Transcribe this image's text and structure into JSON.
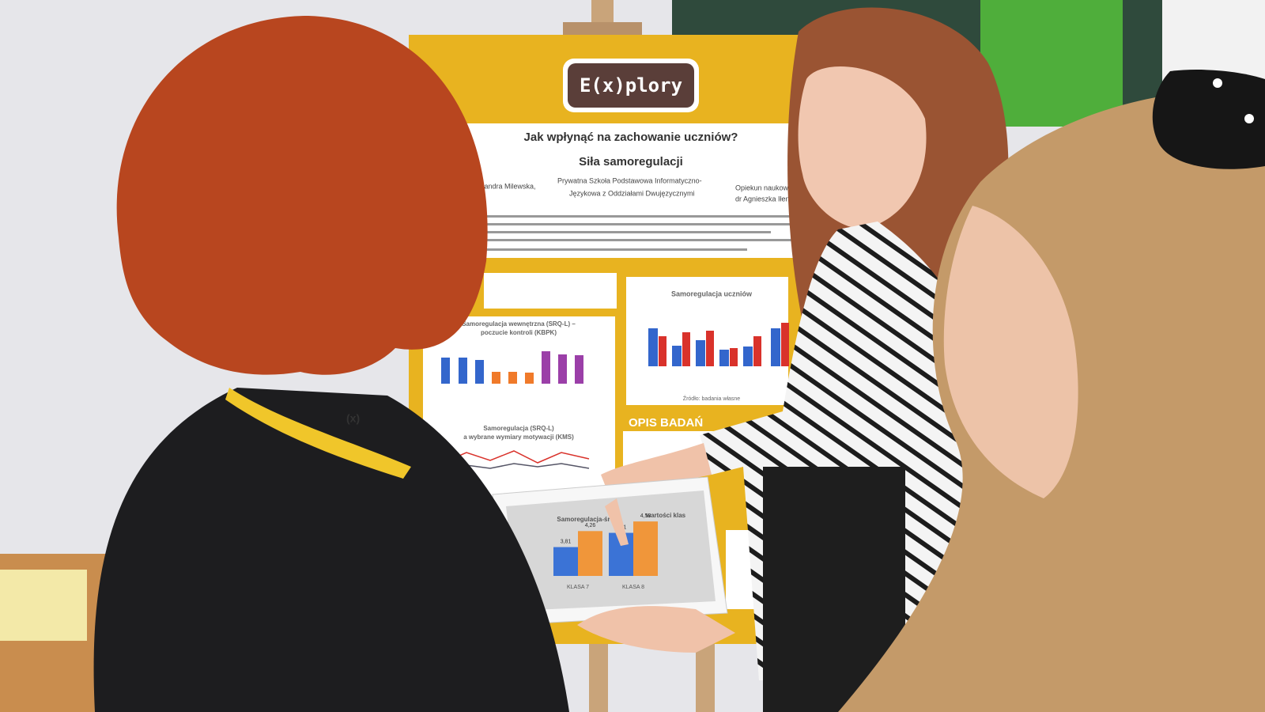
{
  "poster": {
    "logo": "E(x)plory",
    "title_line1": "Jak wpłynąć na zachowanie uczniów?",
    "title_line2": "Siła samoregulacji",
    "author": "sandra Milewska,",
    "school_line1": "Prywatna Szkoła Podstawowa Informatyczno-",
    "school_line2": "Językowa z Oddziałami Dwujęzycznymi",
    "advisor_line1": "Opiekun naukowy:",
    "advisor_line2": "dr Agnieszka Iłendo-Milew",
    "chart1_title": "Samoregulacja uczniów",
    "chart2_title_line1": "Samoregulacja wewnętrzna (SRQ-L) –",
    "chart2_title_line2": "poczucie kontroli (KBPK)",
    "chart3_title_line1": "Samoregulacja (SRQ-L)",
    "chart3_title_line2": "a wybrane wymiary motywacji (KMS)",
    "section": "OPIS BADAŃ",
    "source": "Źródło: badania własne"
  },
  "handout": {
    "type": "bar",
    "title_left": "Samoregulacja-śr",
    "title_right": "wartości klas",
    "categories": [
      "KLASA 7",
      "KLASA 8"
    ],
    "ylim": [
      3,
      5
    ],
    "series": [
      {
        "color": "#3b73d6",
        "values": [
          3.81,
          4.21
        ],
        "value_labels": [
          "3,81",
          "4,21"
        ]
      },
      {
        "color": "#f0963a",
        "values": [
          4.26,
          4.53
        ],
        "value_labels": [
          "4,26",
          "4,53"
        ]
      }
    ]
  },
  "lanyard": "(x)"
}
